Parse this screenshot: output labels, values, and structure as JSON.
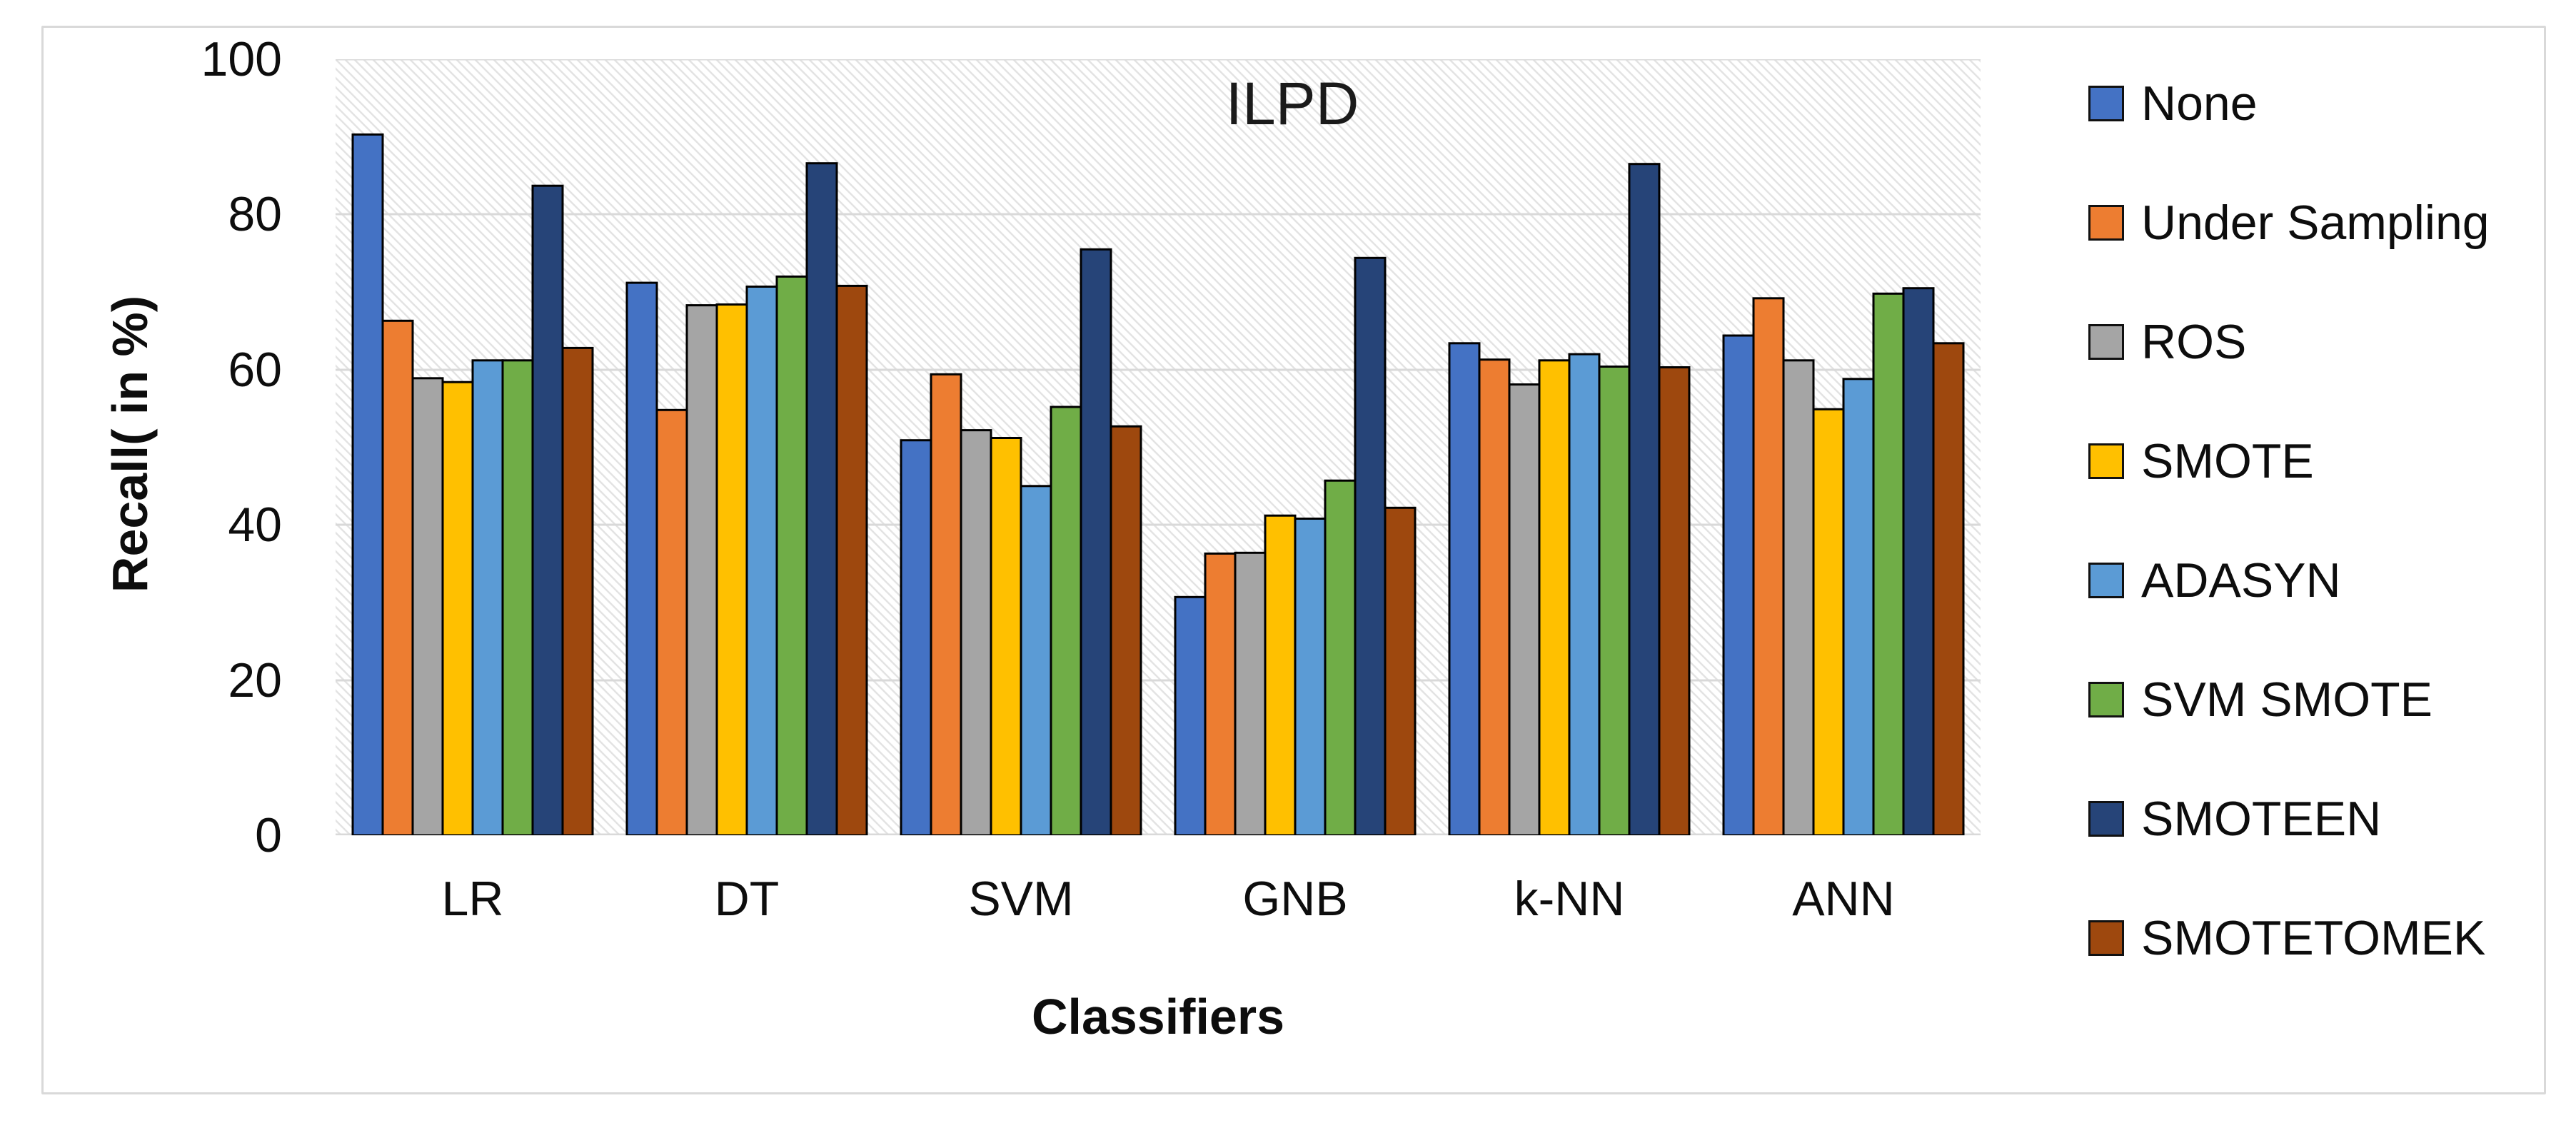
{
  "figure": {
    "border_color": "#D9D9D9",
    "background": "#ffffff"
  },
  "chart_data": {
    "type": "bar",
    "title": "ILPD",
    "xlabel": "Classifiers",
    "ylabel": "Recall( in %)",
    "ylim": [
      0,
      100
    ],
    "yticks": [
      0,
      20,
      40,
      60,
      80,
      100
    ],
    "grid": true,
    "gridline_color": "#D9D9D9",
    "plot_hatch_color": "#E3E3E3",
    "bar_outline_color": "#000000",
    "legend_position": "right",
    "categories": [
      "LR",
      "DT",
      "SVM",
      "GNB",
      "k-NN",
      "ANN"
    ],
    "series": [
      {
        "name": "None",
        "color": "#4472C4",
        "values": [
          90.3,
          71.2,
          50.9,
          30.7,
          63.4,
          64.4
        ]
      },
      {
        "name": "Under Sampling",
        "color": "#ED7D31",
        "values": [
          66.3,
          54.8,
          59.4,
          36.3,
          61.3,
          69.2
        ]
      },
      {
        "name": "ROS",
        "color": "#A5A5A5",
        "values": [
          58.9,
          68.3,
          52.2,
          36.4,
          58.1,
          61.2
        ]
      },
      {
        "name": "SMOTE",
        "color": "#FFC000",
        "values": [
          58.4,
          68.4,
          51.2,
          41.2,
          61.2,
          54.9
        ]
      },
      {
        "name": "ADASYN",
        "color": "#5B9BD5",
        "values": [
          61.2,
          70.7,
          45.0,
          40.8,
          62.0,
          58.8
        ]
      },
      {
        "name": "SVM SMOTE",
        "color": "#70AD47",
        "values": [
          61.2,
          72.0,
          55.2,
          45.7,
          60.4,
          69.8
        ]
      },
      {
        "name": "SMOTEEN",
        "color": "#264478",
        "values": [
          83.7,
          86.6,
          75.5,
          74.4,
          86.5,
          70.5
        ]
      },
      {
        "name": "SMOTETOMEK",
        "color": "#9E480E",
        "values": [
          62.8,
          70.8,
          52.7,
          42.2,
          60.3,
          63.4
        ]
      }
    ]
  }
}
